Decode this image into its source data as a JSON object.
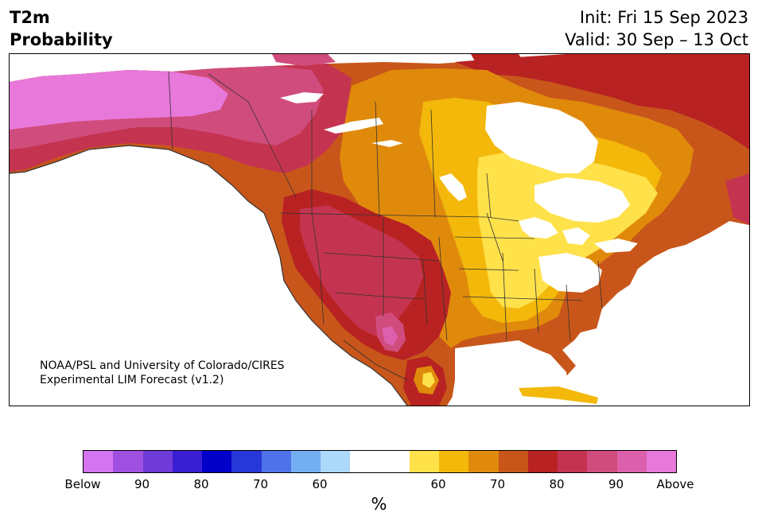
{
  "header": {
    "title_line1": "T2m",
    "title_line2": "Probability",
    "init": "Init: Fri 15 Sep 2023",
    "valid": "Valid: 30 Sep – 13 Oct"
  },
  "credit": {
    "line1": "NOAA/PSL and University of Colorado/CIRES",
    "line2": "Experimental LIM Forecast (v1.2)"
  },
  "colorbar": {
    "colors": [
      "#d474ee",
      "#a050e0",
      "#6e3ad8",
      "#3a1ed4",
      "#0000c8",
      "#2838d8",
      "#4e72ea",
      "#74aef2",
      "#acd8fa",
      "#ffffff",
      "#ffffff",
      "#ffe14a",
      "#f3b80a",
      "#e08a0c",
      "#c8561a",
      "#b82222",
      "#c43450",
      "#d04c7c",
      "#dc60ac",
      "#e878da"
    ],
    "tick_labels": [
      "Below",
      "90",
      "80",
      "70",
      "60",
      "60",
      "70",
      "80",
      "90",
      "Above"
    ],
    "unit": "%"
  },
  "map": {
    "legend_categories": [
      "Below",
      "Above"
    ],
    "palette": {
      "above_60": "#ffe14a",
      "above_65": "#f3b80a",
      "above_70": "#e08a0c",
      "above_75": "#c8561a",
      "above_80": "#b82222",
      "above_85": "#c43450",
      "above_90": "#d04c7c",
      "above_95": "#dc60ac",
      "above_max": "#e878da",
      "near_normal": "#ffffff",
      "borders": "#333333"
    }
  }
}
